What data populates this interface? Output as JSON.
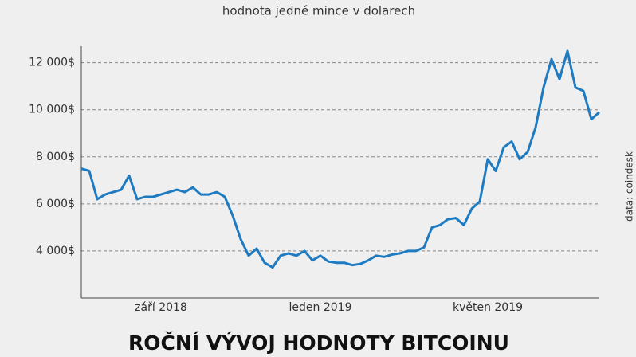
{
  "chart_data": {
    "type": "line",
    "title": "ROČNÍ VÝVOJ HODNOTY BITCOINU",
    "subtitle": "hodnota jedné mince v dolarech",
    "source": "data: coindesk",
    "categories": [
      null,
      null,
      null,
      null,
      null,
      null,
      null,
      null,
      null,
      null,
      "září 2018",
      null,
      null,
      null,
      null,
      null,
      null,
      null,
      null,
      null,
      null,
      null,
      null,
      null,
      null,
      null,
      null,
      null,
      null,
      null,
      "leden 2019",
      null,
      null,
      null,
      null,
      null,
      null,
      null,
      null,
      null,
      null,
      null,
      null,
      null,
      null,
      null,
      null,
      null,
      null,
      null,
      null,
      "květen 2019",
      null,
      null,
      null,
      null,
      null,
      null,
      null,
      null,
      null,
      null,
      null,
      null,
      null,
      null
    ],
    "series": [
      {
        "name": "Bitcoin",
        "color": "#1f7bc1",
        "values": [
          7500,
          7400,
          6200,
          6400,
          6500,
          6600,
          7200,
          6200,
          6300,
          6300,
          6400,
          6500,
          6600,
          6500,
          6700,
          6400,
          6400,
          6500,
          6300,
          5500,
          4500,
          3800,
          4100,
          3500,
          3300,
          3800,
          3900,
          3800,
          4000,
          3600,
          3800,
          3550,
          3500,
          3500,
          3400,
          3450,
          3600,
          3800,
          3750,
          3850,
          3900,
          4000,
          4000,
          4150,
          5000,
          5100,
          5350,
          5400,
          5100,
          5800,
          6100,
          7900,
          7400,
          8400,
          8650,
          7900,
          8200,
          9250,
          10950,
          12150,
          11300,
          12500,
          10950,
          10800,
          9600,
          9900
        ]
      }
    ],
    "ylim": [
      2000,
      12700
    ],
    "yticks": [
      {
        "value": 4000,
        "label": "4 000$"
      },
      {
        "value": 6000,
        "label": "6 000$"
      },
      {
        "value": 8000,
        "label": "8 000$"
      },
      {
        "value": 10000,
        "label": "10 000$"
      },
      {
        "value": 12000,
        "label": "12 000$"
      }
    ],
    "grid": true
  }
}
